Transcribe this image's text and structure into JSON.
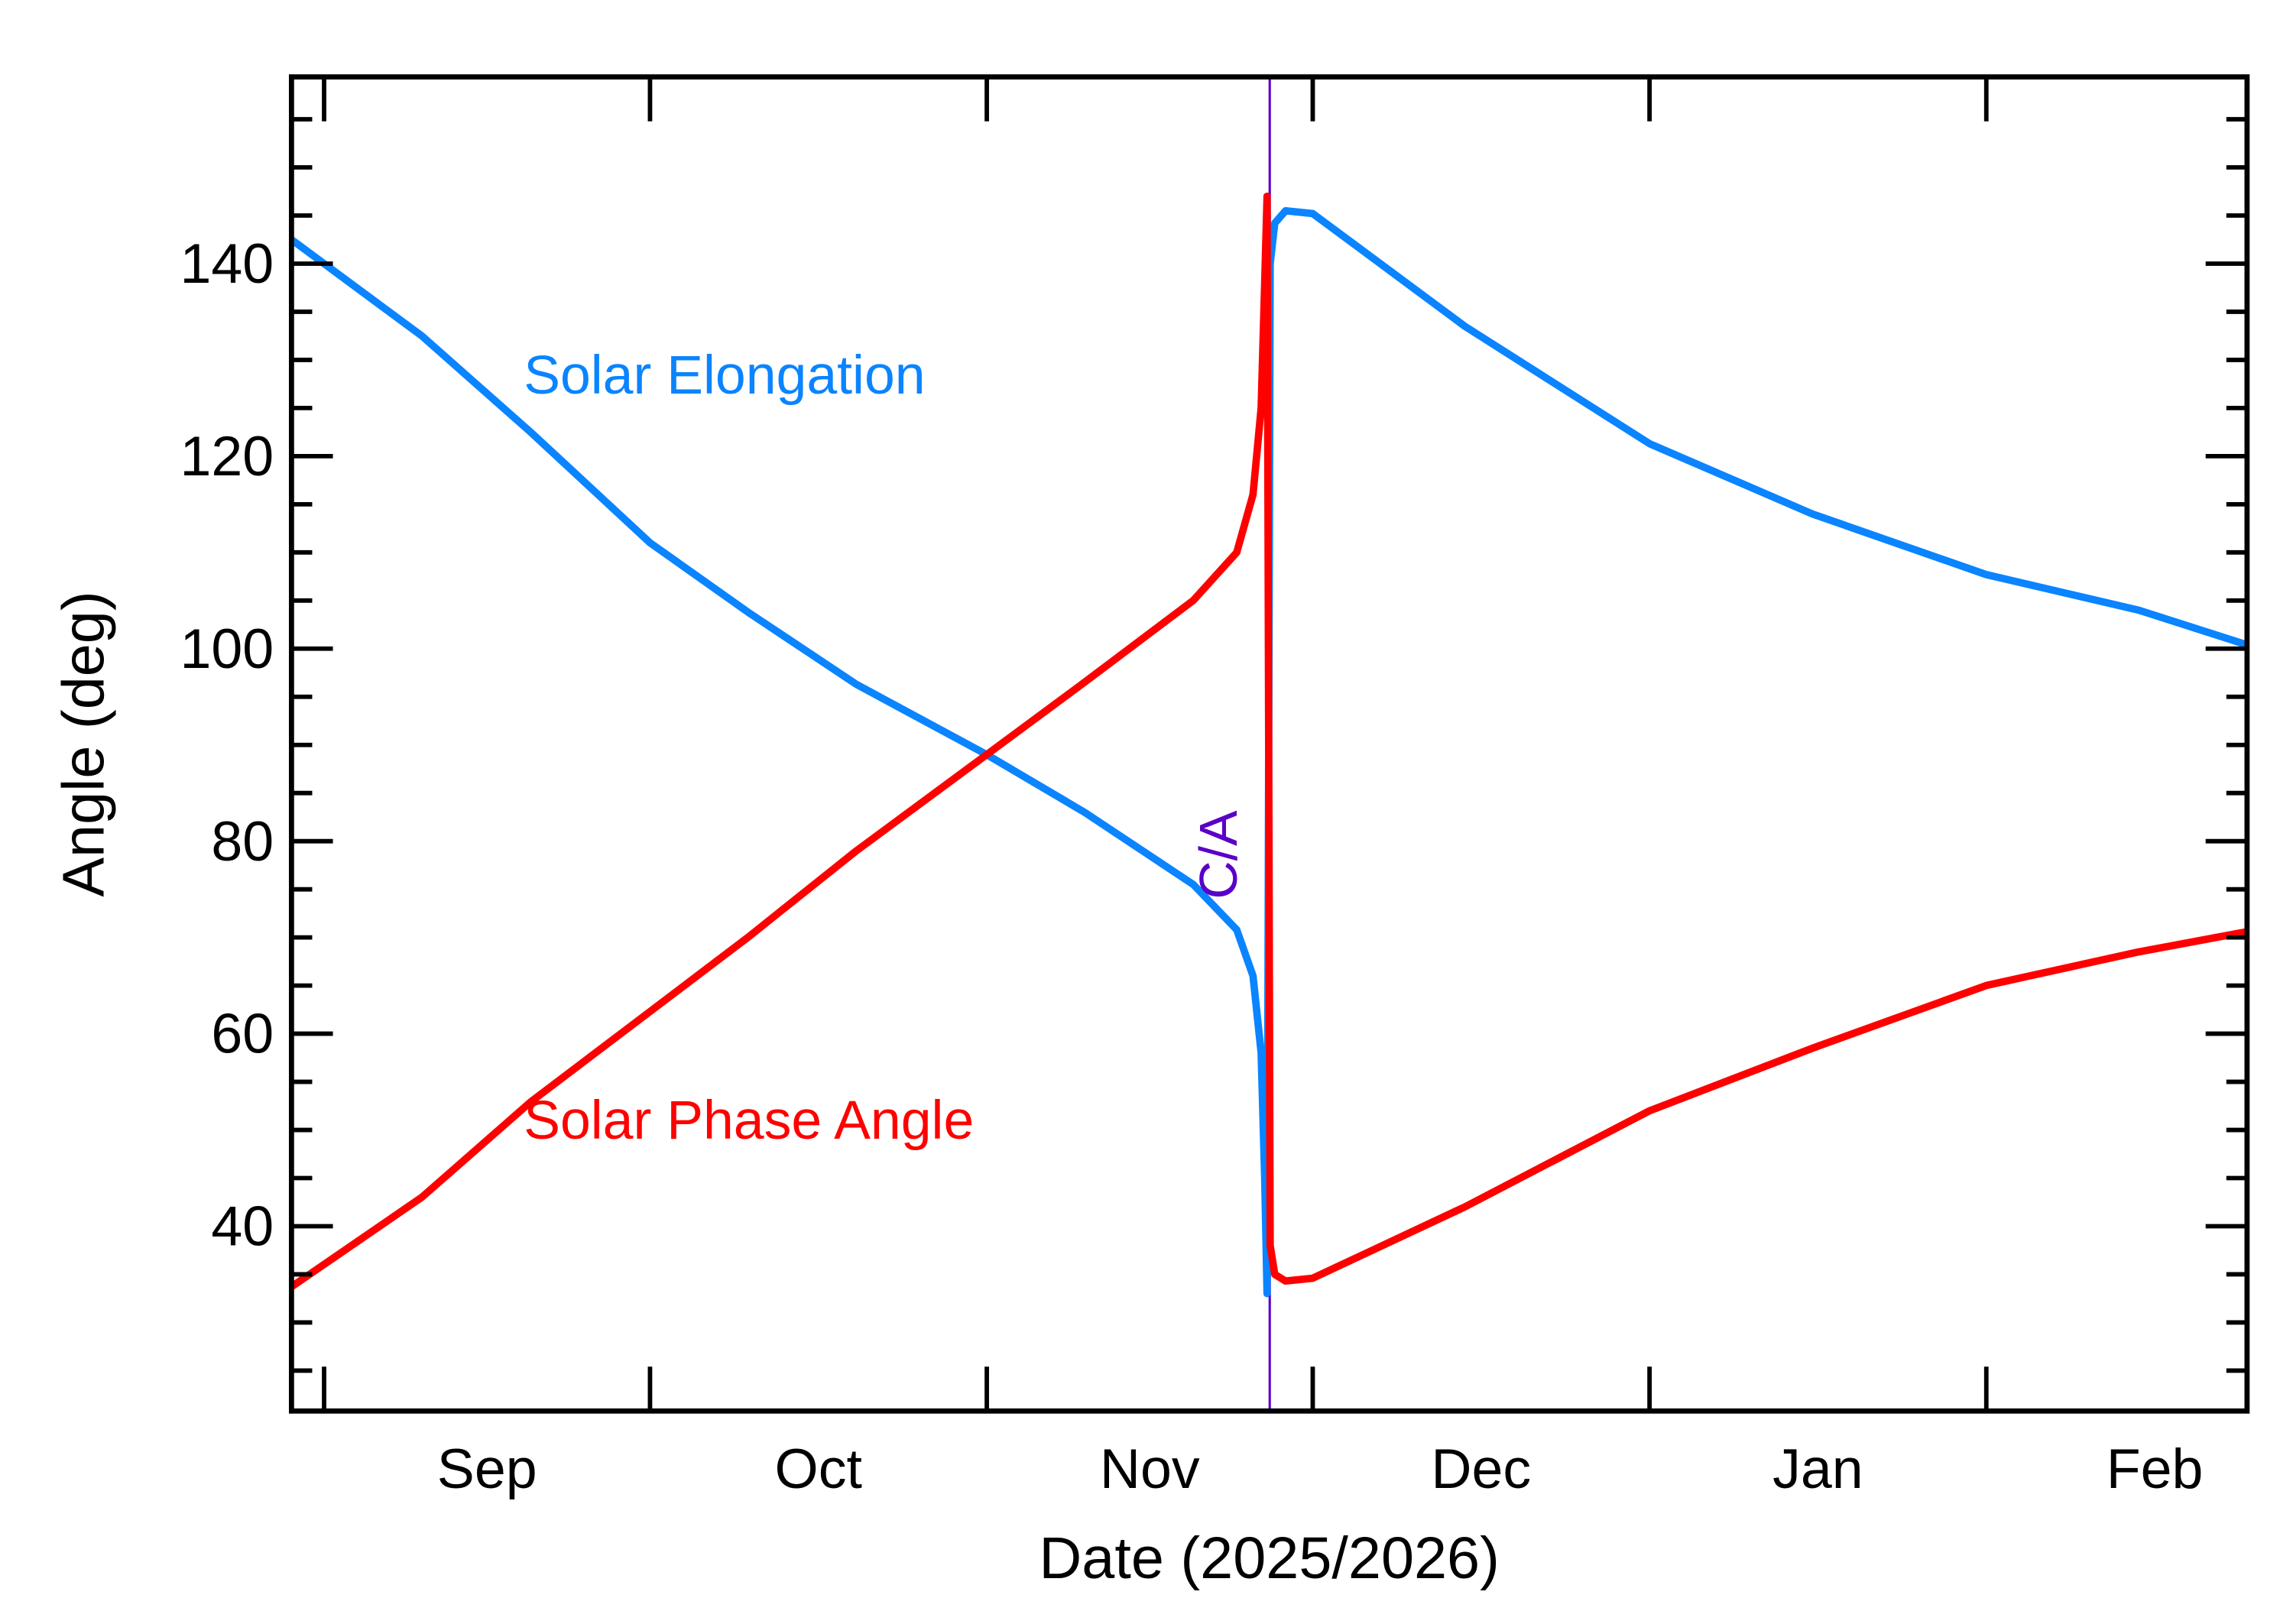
{
  "chart_data": {
    "type": "line",
    "title": "",
    "xlabel": "Date (2025/2026)",
    "ylabel": "Angle (deg)",
    "xlim": [
      "2025-08-29",
      "2026-02-25"
    ],
    "ylim": [
      20.8,
      159.4
    ],
    "x_ticks": [
      {
        "date": "2025-09-01",
        "label": "Sep"
      },
      {
        "date": "2025-10-01",
        "label": "Oct"
      },
      {
        "date": "2025-11-01",
        "label": "Nov"
      },
      {
        "date": "2025-12-01",
        "label": "Dec"
      },
      {
        "date": "2026-01-01",
        "label": "Jan"
      },
      {
        "date": "2026-02-01",
        "label": "Feb"
      }
    ],
    "y_ticks": [
      40,
      60,
      80,
      100,
      120,
      140
    ],
    "y_minor_step": 5,
    "grid": false,
    "closest_approach": {
      "date": "2025-11-27T01:00",
      "label": "C/A",
      "color": "#5a00c8"
    },
    "series": [
      {
        "name": "Solar Elongation",
        "color": "#0a84ff",
        "points": [
          [
            "2025-08-29",
            142.5
          ],
          [
            "2025-09-10",
            132.5
          ],
          [
            "2025-09-20",
            122.5
          ],
          [
            "2025-10-01",
            111.0
          ],
          [
            "2025-10-10",
            103.8
          ],
          [
            "2025-10-20",
            96.3
          ],
          [
            "2025-11-01",
            89.0
          ],
          [
            "2025-11-10",
            83.0
          ],
          [
            "2025-11-20",
            75.5
          ],
          [
            "2025-11-24",
            70.8
          ],
          [
            "2025-11-25T12:00",
            66.0
          ],
          [
            "2025-11-26T06:00",
            58.0
          ],
          [
            "2025-11-26T14:00",
            45.0
          ],
          [
            "2025-11-26T19:00",
            33.0
          ],
          [
            "2025-11-27T02:00",
            140.0
          ],
          [
            "2025-11-27T12:00",
            144.2
          ],
          [
            "2025-11-28T12:00",
            145.5
          ],
          [
            "2025-12-01",
            145.2
          ],
          [
            "2025-12-15",
            133.5
          ],
          [
            "2026-01-01",
            121.3
          ],
          [
            "2026-01-16",
            114.0
          ],
          [
            "2026-02-01",
            107.7
          ],
          [
            "2026-02-15",
            104.0
          ],
          [
            "2026-02-25",
            100.4
          ]
        ]
      },
      {
        "name": "Solar Phase Angle",
        "color": "#ff0000",
        "points": [
          [
            "2025-08-29",
            33.7
          ],
          [
            "2025-09-10",
            43.0
          ],
          [
            "2025-09-20",
            52.9
          ],
          [
            "2025-10-01",
            62.3
          ],
          [
            "2025-10-10",
            70.0
          ],
          [
            "2025-10-20",
            79.0
          ],
          [
            "2025-11-01",
            89.0
          ],
          [
            "2025-11-10",
            96.5
          ],
          [
            "2025-11-20",
            105.0
          ],
          [
            "2025-11-24",
            110.0
          ],
          [
            "2025-11-25T12:00",
            116.0
          ],
          [
            "2025-11-26T06:00",
            125.0
          ],
          [
            "2025-11-26T14:00",
            138.0
          ],
          [
            "2025-11-26T19:00",
            147.0
          ],
          [
            "2025-11-27T02:00",
            38.0
          ],
          [
            "2025-11-27T12:00",
            35.0
          ],
          [
            "2025-11-28T12:00",
            34.3
          ],
          [
            "2025-12-01",
            34.6
          ],
          [
            "2025-12-15",
            42.0
          ],
          [
            "2026-01-01",
            52.0
          ],
          [
            "2026-01-16",
            58.5
          ],
          [
            "2026-02-01",
            65.0
          ],
          [
            "2026-02-15",
            68.5
          ],
          [
            "2026-02-25",
            70.6
          ]
        ]
      }
    ]
  }
}
